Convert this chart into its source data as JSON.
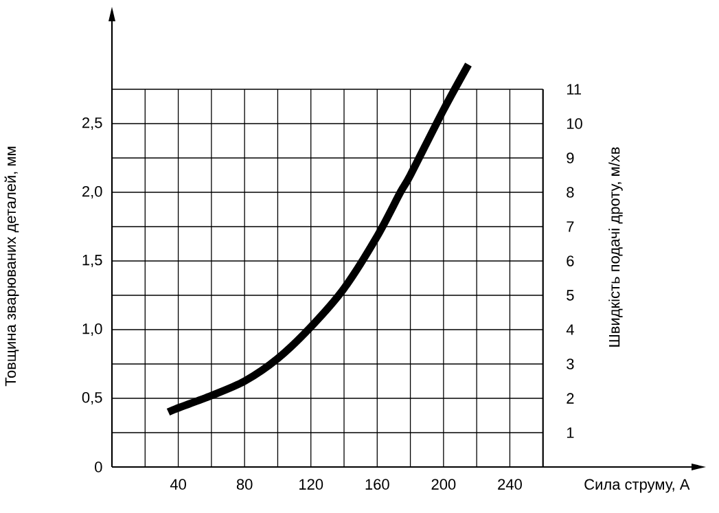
{
  "chart_data": {
    "type": "line",
    "xlabel": "Сила струму, А",
    "ylabel": "Товщина зварюваних деталей, мм",
    "y2label": "Швидкість подачі дроту, м/хв",
    "x": [
      34,
      40,
      60,
      80,
      100,
      120,
      140,
      160,
      174,
      180,
      200,
      215
    ],
    "series": [
      {
        "color": "#000000",
        "values": [
          0.4,
          0.43,
          0.52,
          0.625,
          0.79,
          1.02,
          1.3,
          1.68,
          2.0,
          2.125,
          2.6,
          2.93
        ]
      }
    ],
    "xlim": [
      0,
      350
    ],
    "ylim": [
      0,
      3.25
    ],
    "y2lim": [
      0,
      13
    ],
    "xticks": [
      {
        "value": 20,
        "label": null
      },
      40,
      {
        "value": 60,
        "label": null
      },
      80,
      {
        "value": 100,
        "label": null
      },
      120,
      {
        "value": 140,
        "label": null
      },
      160,
      {
        "value": 180,
        "label": null
      },
      200,
      {
        "value": 220,
        "label": null
      },
      240,
      {
        "value": 260,
        "label": null
      }
    ],
    "yticks": [
      0,
      {
        "value": 0.5,
        "label": "0,5"
      },
      {
        "value": 1.0,
        "label": "1,0"
      },
      {
        "value": 1.5,
        "label": "1,5"
      },
      {
        "value": 2.0,
        "label": "2,0"
      },
      {
        "value": 2.5,
        "label": "2,5"
      }
    ],
    "y2ticks": [
      1,
      2,
      3,
      4,
      5,
      6,
      7,
      8,
      9,
      10,
      11
    ],
    "grid": true,
    "marker": "none",
    "line_style": "solid"
  }
}
